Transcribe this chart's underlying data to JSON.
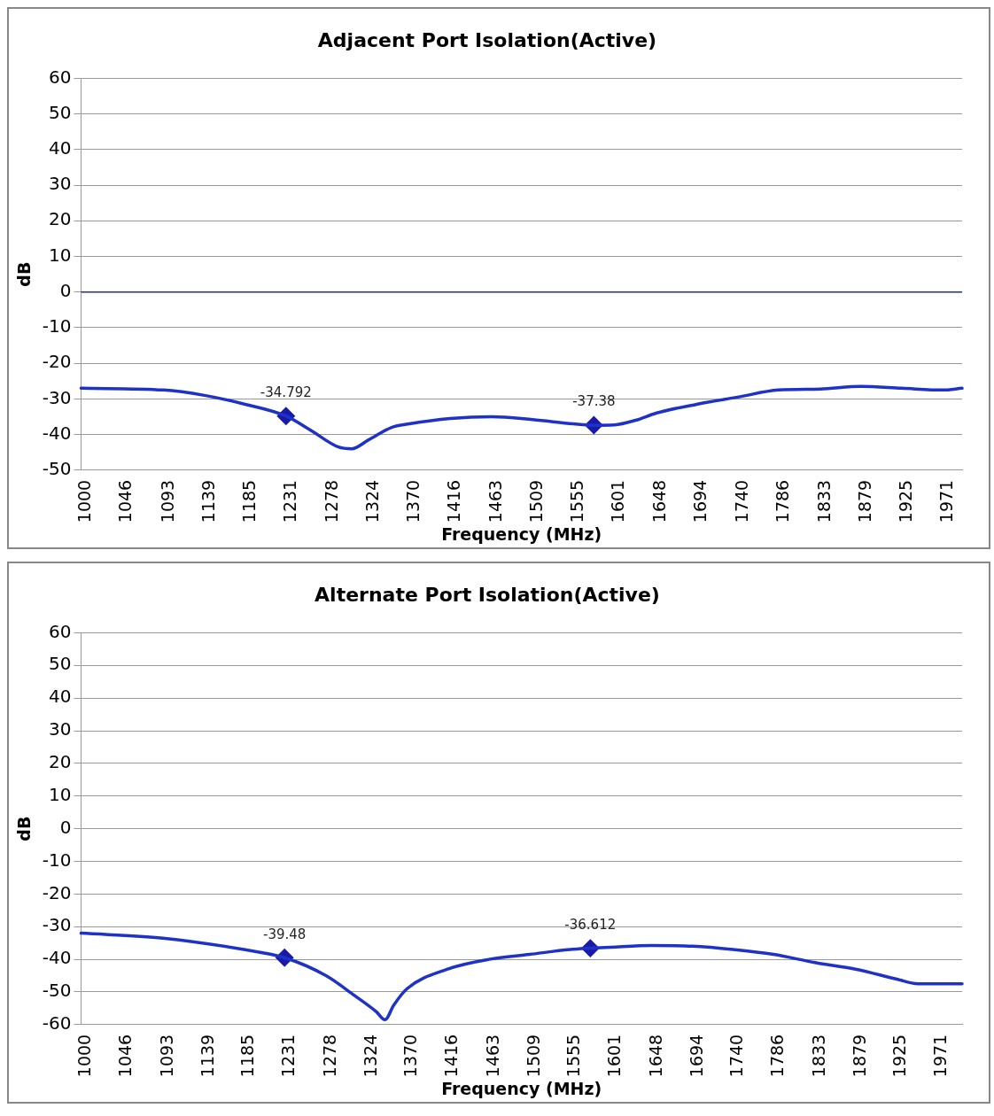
{
  "chart_data": [
    {
      "type": "line",
      "title": "Adjacent Port Isolation(Active)",
      "xlabel": "Frequency (MHz)",
      "ylabel": "dB",
      "legend": false,
      "grid": "y",
      "xlim": [
        1000,
        1993
      ],
      "xticks": [
        1000,
        1046,
        1093,
        1139,
        1185,
        1231,
        1278,
        1324,
        1370,
        1416,
        1463,
        1509,
        1555,
        1601,
        1648,
        1694,
        1740,
        1786,
        1833,
        1879,
        1925,
        1971
      ],
      "ylim": [
        -50,
        60
      ],
      "yticks": [
        -50,
        -40,
        -30,
        -20,
        -10,
        0,
        10,
        20,
        30,
        40,
        50,
        60
      ],
      "ref_lines": [
        {
          "axis": "y",
          "value": 0,
          "color": "#1f2f8f"
        }
      ],
      "series": [
        {
          "type": "line",
          "color": "#1f32c8",
          "marker": "none",
          "x": [
            1000,
            1093,
            1139,
            1185,
            1231,
            1260,
            1290,
            1305,
            1324,
            1350,
            1370,
            1416,
            1463,
            1509,
            1555,
            1578,
            1601,
            1625,
            1648,
            1694,
            1740,
            1786,
            1833,
            1879,
            1925,
            1971,
            1993
          ],
          "values": [
            -27,
            -27.5,
            -29,
            -31.5,
            -34.8,
            -39,
            -43.5,
            -44,
            -41.5,
            -38,
            -37,
            -35.5,
            -35,
            -35.8,
            -37,
            -37.4,
            -37.3,
            -36,
            -34,
            -31.5,
            -29.5,
            -27.5,
            -27.2,
            -26.5,
            -27,
            -27.5,
            -27
          ]
        },
        {
          "type": "scatter",
          "color": "#1a1aa8",
          "marker": "diamond",
          "x": [
            1231,
            1578
          ],
          "values": [
            -34.792,
            -37.38
          ],
          "value_labels": [
            "-34.792",
            "-37.38"
          ]
        }
      ]
    },
    {
      "type": "line",
      "title": "Alternate Port Isolation(Active)",
      "xlabel": "Frequency (MHz)",
      "ylabel": "dB",
      "legend": false,
      "grid": "y",
      "xlim": [
        1000,
        2000
      ],
      "xticks": [
        1000,
        1046,
        1093,
        1139,
        1185,
        1231,
        1278,
        1324,
        1370,
        1416,
        1463,
        1509,
        1555,
        1601,
        1648,
        1694,
        1740,
        1786,
        1833,
        1879,
        1925,
        1971
      ],
      "ylim": [
        -60,
        60
      ],
      "yticks": [
        -60,
        -50,
        -40,
        -30,
        -20,
        -10,
        0,
        10,
        20,
        30,
        40,
        50,
        60
      ],
      "series": [
        {
          "type": "line",
          "color": "#1f32c8",
          "marker": "none",
          "x": [
            1000,
            1093,
            1185,
            1231,
            1278,
            1310,
            1335,
            1345,
            1355,
            1370,
            1416,
            1463,
            1509,
            1555,
            1578,
            1601,
            1648,
            1694,
            1740,
            1786,
            1833,
            1879,
            1925,
            1950,
            2000
          ],
          "values": [
            -32,
            -33.5,
            -37,
            -39.5,
            -45,
            -51,
            -56,
            -58.5,
            -54,
            -49,
            -43,
            -40,
            -38.5,
            -37,
            -36.6,
            -36.3,
            -35.8,
            -36,
            -37,
            -38.5,
            -41,
            -43,
            -46,
            -47.5,
            -47.5
          ]
        },
        {
          "type": "scatter",
          "color": "#1a1aa8",
          "marker": "diamond",
          "x": [
            1231,
            1578
          ],
          "values": [
            -39.48,
            -36.612
          ],
          "value_labels": [
            "-39.48",
            "-36.612"
          ]
        }
      ]
    }
  ]
}
